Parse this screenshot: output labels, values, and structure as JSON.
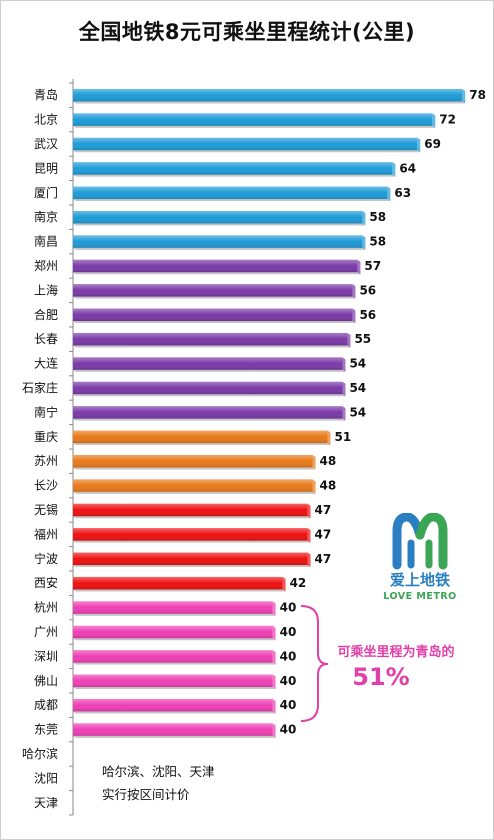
{
  "chart_data": {
    "type": "bar",
    "orientation": "horizontal",
    "title": "全国地铁8元可乘坐里程统计(公里)",
    "xlabel": "",
    "ylabel": "",
    "xlim": [
      0,
      80
    ],
    "grid": false,
    "legend": "none",
    "categories": [
      "青岛",
      "北京",
      "武汉",
      "昆明",
      "厦门",
      "南京",
      "南昌",
      "郑州",
      "上海",
      "合肥",
      "长春",
      "大连",
      "石家庄",
      "南宁",
      "重庆",
      "苏州",
      "长沙",
      "无锡",
      "福州",
      "宁波",
      "西安",
      "杭州",
      "广州",
      "深圳",
      "佛山",
      "成都",
      "东莞",
      "哈尔滨",
      "沈阳",
      "天津"
    ],
    "values": [
      78,
      72,
      69,
      64,
      63,
      58,
      58,
      57,
      56,
      56,
      55,
      54,
      54,
      54,
      51,
      48,
      48,
      47,
      47,
      47,
      42,
      40,
      40,
      40,
      40,
      40,
      40,
      null,
      null,
      null
    ],
    "colors": [
      "#1e9bd7",
      "#1e9bd7",
      "#1e9bd7",
      "#1e9bd7",
      "#1e9bd7",
      "#1e9bd7",
      "#1e9bd7",
      "#7a3aa8",
      "#7a3aa8",
      "#7a3aa8",
      "#7a3aa8",
      "#7a3aa8",
      "#7a3aa8",
      "#7a3aa8",
      "#e87a1a",
      "#e87a1a",
      "#e87a1a",
      "#ee1111",
      "#ee1111",
      "#ee1111",
      "#ee1111",
      "#ee3fb4",
      "#ee3fb4",
      "#ee3fb4",
      "#ee3fb4",
      "#ee3fb4",
      "#ee3fb4",
      null,
      null,
      null
    ]
  },
  "note": {
    "line1": "哈尔滨、沈阳、天津",
    "line2": "实行按区间计价"
  },
  "callout": {
    "text": "可乘坐里程为青岛的",
    "percent": "51%",
    "color": "#e040a8"
  },
  "logo": {
    "name_cn": "爱上地铁",
    "name_en": "LOVE METRO"
  }
}
